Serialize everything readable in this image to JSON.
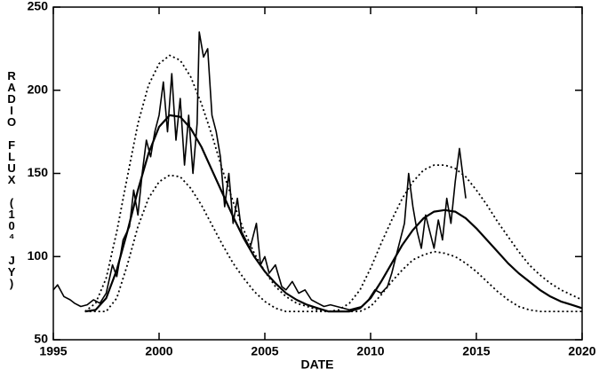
{
  "chart_data": {
    "type": "line",
    "xlabel": "DATE",
    "ylabel": "RADIO FLUX (10⁴ JY)",
    "xlim": [
      1995,
      2020
    ],
    "xticks": [
      1995,
      2000,
      2005,
      2010,
      2015,
      2020
    ],
    "ylim": [
      50,
      250
    ],
    "yticks": [
      50,
      100,
      150,
      200,
      250
    ],
    "series": [
      {
        "color": "#000000",
        "line_style": "solid",
        "width": 1.6,
        "x": [
          1995.0,
          1995.2,
          1995.5,
          1995.8,
          1996.0,
          1996.3,
          1996.6,
          1996.9,
          1997.2,
          1997.5,
          1997.8,
          1998.0,
          1998.3,
          1998.6,
          1998.8,
          1999.0,
          1999.2,
          1999.4,
          1999.6,
          1999.8,
          2000.0,
          2000.2,
          2000.4,
          2000.6,
          2000.8,
          2001.0,
          2001.2,
          2001.4,
          2001.6,
          2001.8,
          2001.9,
          2002.1,
          2002.3,
          2002.5,
          2002.7,
          2002.9,
          2003.1,
          2003.3,
          2003.5,
          2003.7,
          2003.9,
          2004.1,
          2004.3,
          2004.6,
          2004.8,
          2005.0,
          2005.2,
          2005.5,
          2005.8,
          2006.0,
          2006.3,
          2006.6,
          2006.9,
          2007.2,
          2007.5,
          2007.8,
          2008.1,
          2008.4,
          2008.7,
          2009.0,
          2009.3,
          2009.6,
          2009.9,
          2010.2,
          2010.5,
          2010.8,
          2011.0,
          2011.3,
          2011.6,
          2011.8,
          2012.0,
          2012.2,
          2012.4,
          2012.6,
          2012.8,
          2013.0,
          2013.2,
          2013.4,
          2013.6,
          2013.8,
          2014.0,
          2014.2,
          2014.4,
          2014.5
        ],
        "values": [
          80,
          83,
          76,
          74,
          72,
          70,
          71,
          74,
          72,
          78,
          95,
          88,
          110,
          118,
          140,
          125,
          150,
          170,
          160,
          175,
          185,
          205,
          175,
          210,
          170,
          195,
          155,
          185,
          150,
          180,
          235,
          220,
          225,
          185,
          175,
          160,
          130,
          150,
          120,
          135,
          115,
          110,
          105,
          120,
          95,
          100,
          90,
          95,
          82,
          80,
          85,
          78,
          80,
          74,
          72,
          70,
          71,
          70,
          69,
          68,
          69,
          70,
          74,
          80,
          78,
          82,
          90,
          105,
          120,
          150,
          130,
          115,
          105,
          125,
          115,
          105,
          122,
          110,
          135,
          120,
          145,
          165,
          145,
          135
        ]
      },
      {
        "color": "#000000",
        "line_style": "solid",
        "width": 2.2,
        "x": [
          1996.5,
          1997,
          1997.5,
          1998,
          1998.5,
          1999,
          1999.5,
          2000,
          2000.5,
          2001,
          2001.5,
          2002,
          2002.5,
          2003,
          2003.5,
          2004,
          2004.5,
          2005,
          2005.5,
          2006,
          2006.5,
          2007,
          2007.5,
          2008,
          2008.5,
          2009,
          2009.5,
          2010,
          2010.5,
          2011,
          2011.5,
          2012,
          2012.5,
          2013,
          2013.5,
          2014,
          2014.5,
          2015,
          2015.5,
          2016,
          2016.5,
          2017,
          2017.5,
          2018,
          2018.5,
          2019,
          2019.5,
          2020
        ],
        "values": [
          67,
          68,
          75,
          92,
          115,
          140,
          162,
          178,
          185,
          184,
          177,
          166,
          152,
          138,
          124,
          111,
          100,
          91,
          84,
          78,
          74,
          71,
          69,
          67,
          67,
          67,
          69,
          75,
          85,
          96,
          107,
          116,
          123,
          127,
          128,
          127,
          123,
          117,
          110,
          103,
          96,
          90,
          85,
          80,
          76,
          73,
          71,
          69
        ]
      },
      {
        "color": "#000000",
        "line_style": "dotted",
        "width": 1.8,
        "x": [
          1996.5,
          1997,
          1997.5,
          1998,
          1998.5,
          1999,
          1999.5,
          2000,
          2000.5,
          2001,
          2001.5,
          2002,
          2002.5,
          2003,
          2003.5,
          2004,
          2004.5,
          2005,
          2005.5,
          2006,
          2006.5,
          2007,
          2007.5,
          2008,
          2008.5,
          2009,
          2009.5,
          2010,
          2010.5,
          2011,
          2011.5,
          2012,
          2012.5,
          2013,
          2013.5,
          2014,
          2014.5,
          2015,
          2015.5,
          2016,
          2016.5,
          2017,
          2017.5,
          2018,
          2018.5,
          2019,
          2019.5,
          2020
        ],
        "values": [
          67,
          72,
          87,
          115,
          148,
          180,
          203,
          216,
          221,
          218,
          208,
          192,
          173,
          152,
          133,
          116,
          102,
          91,
          82,
          76,
          72,
          70,
          68,
          67,
          68,
          72,
          80,
          93,
          108,
          122,
          135,
          145,
          152,
          155,
          155,
          153,
          148,
          140,
          131,
          121,
          112,
          103,
          95,
          89,
          84,
          80,
          77,
          74
        ]
      },
      {
        "color": "#000000",
        "line_style": "dotted",
        "width": 1.8,
        "x": [
          1996.5,
          1997,
          1997.5,
          1998,
          1998.5,
          1999,
          1999.5,
          2000,
          2000.5,
          2001,
          2001.5,
          2002,
          2002.5,
          2003,
          2003.5,
          2004,
          2004.5,
          2005,
          2005.5,
          2006,
          2007,
          2008,
          2009,
          2009.5,
          2010,
          2010.5,
          2011,
          2011.5,
          2012,
          2012.5,
          2013,
          2013.5,
          2014,
          2014.5,
          2015,
          2015.5,
          2016,
          2016.5,
          2017,
          2017.5,
          2018,
          2020
        ],
        "values": [
          67,
          67,
          67,
          75,
          95,
          118,
          135,
          145,
          149,
          148,
          141,
          131,
          119,
          107,
          96,
          87,
          79,
          73,
          69,
          67,
          67,
          67,
          67,
          67,
          70,
          77,
          85,
          92,
          98,
          101,
          103,
          102,
          100,
          96,
          91,
          85,
          79,
          74,
          70,
          68,
          67,
          67
        ]
      }
    ]
  }
}
